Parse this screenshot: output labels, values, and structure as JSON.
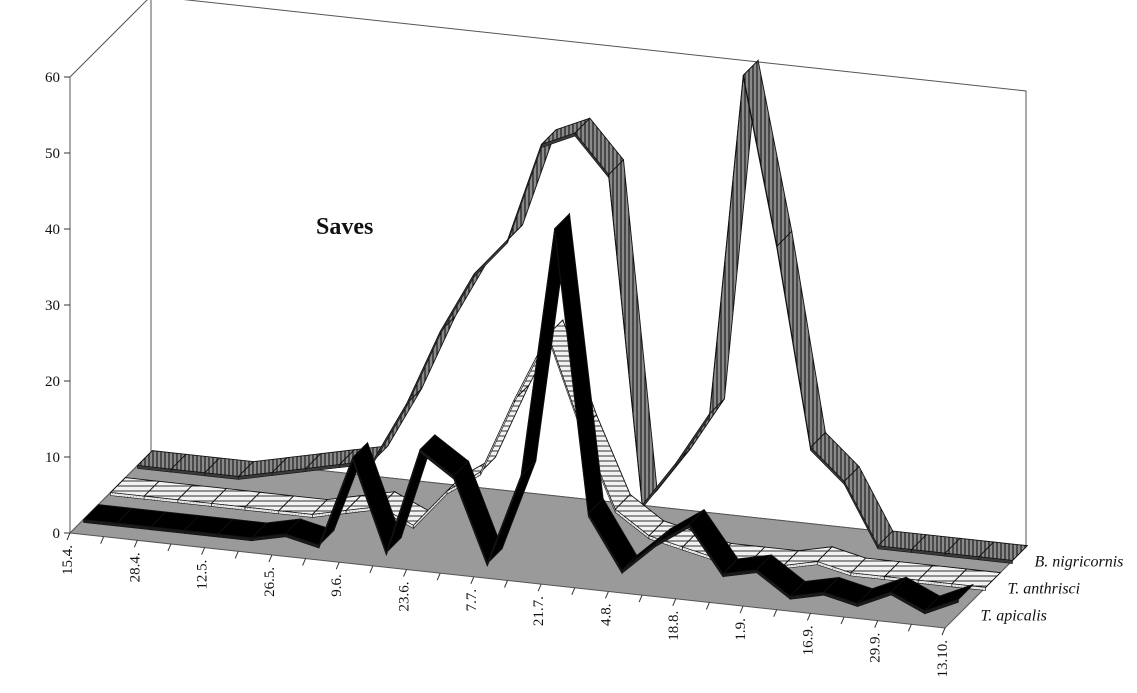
{
  "chart_data": {
    "type": "area",
    "title": "Saves",
    "xlabel": "",
    "ylabel": "",
    "ylim": [
      0,
      60
    ],
    "y_ticks": [
      "0",
      "10",
      "20",
      "30",
      "40",
      "50",
      "60"
    ],
    "x_tick_labels": [
      "15.4.",
      "28.4.",
      "12.5.",
      "26.5.",
      "9.6.",
      "23.6.",
      "7.7.",
      "21.7.",
      "4.8.",
      "18.8.",
      "1.9.",
      "16.9.",
      "29.9.",
      "13.10."
    ],
    "x": [
      "15.4.",
      "",
      "28.4.",
      "",
      "12.5.",
      "",
      "26.5.",
      "",
      "9.6.",
      "",
      "23.6.",
      "",
      "7.7.",
      "",
      "21.7.",
      "",
      "4.8.",
      "",
      "18.8.",
      "",
      "1.9.",
      "",
      "16.9.",
      "",
      "29.9.",
      "",
      "13.10."
    ],
    "grid": false,
    "legend": "series labels at right of depth axis",
    "series": [
      {
        "name": "T. apicalis",
        "values": [
          0,
          0,
          0,
          0,
          0,
          0,
          1,
          0,
          12,
          0,
          14,
          11,
          0,
          12,
          45,
          8,
          1,
          5,
          8,
          2,
          3,
          0,
          1,
          0,
          2,
          0,
          2
        ],
        "fill": "#000000",
        "pattern": "solid"
      },
      {
        "name": "T. anthrisci",
        "values": [
          0,
          0,
          0,
          0,
          0,
          0,
          0,
          1,
          2,
          0,
          5,
          8,
          18,
          27,
          15,
          5,
          2,
          1,
          0,
          0,
          0,
          1,
          0,
          0,
          0,
          0,
          0
        ],
        "fill": "#d8d8d8",
        "pattern": "horizontal-stripes"
      },
      {
        "name": "B. nigricornis",
        "values": [
          0,
          0,
          0,
          0,
          1,
          2,
          3,
          4,
          12,
          22,
          30,
          35,
          48,
          50,
          45,
          2,
          8,
          15,
          60,
          38,
          12,
          8,
          0,
          0,
          0,
          0,
          0
        ],
        "fill": "#6b6b6b",
        "pattern": "vertical-stripes"
      }
    ]
  }
}
